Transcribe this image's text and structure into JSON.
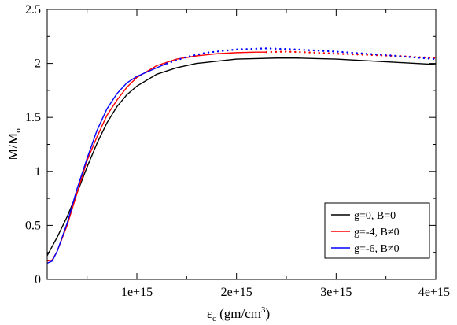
{
  "chart_data": {
    "type": "line",
    "xlabel": {
      "symbol": "ε",
      "sub": "c",
      "rest": " (gm/cm",
      "sup": "3",
      "close": ")"
    },
    "ylabel": {
      "main": "M/M",
      "sub": "o"
    },
    "xlim": [
      100000000000000.0,
      4000000000000000.0
    ],
    "ylim": [
      0,
      2.5
    ],
    "xticks": [
      {
        "value": 1000000000000000.0,
        "label": "1e+15"
      },
      {
        "value": 2000000000000000.0,
        "label": "2e+15"
      },
      {
        "value": 3000000000000000.0,
        "label": "3e+15"
      },
      {
        "value": 4000000000000000.0,
        "label": "4e+15"
      }
    ],
    "yticks": [
      {
        "value": 0,
        "label": "0"
      },
      {
        "value": 0.5,
        "label": "0.5"
      },
      {
        "value": 1,
        "label": "1"
      },
      {
        "value": 1.5,
        "label": "1.5"
      },
      {
        "value": 2,
        "label": "2"
      },
      {
        "value": 2.5,
        "label": "2.5"
      }
    ],
    "grid": false,
    "legend": "bottom-right",
    "series": [
      {
        "name": "g=0, B=0",
        "color": "#000000",
        "x": [
          100000000000000.0,
          200000000000000.0,
          300000000000000.0,
          400000000000000.0,
          500000000000000.0,
          600000000000000.0,
          700000000000000.0,
          800000000000000.0,
          900000000000000.0,
          1000000000000000.0,
          1200000000000000.0,
          1400000000000000.0,
          1600000000000000.0,
          1800000000000000.0,
          2000000000000000.0,
          2200000000000000.0,
          2400000000000000.0,
          2600000000000000.0,
          2800000000000000.0,
          3000000000000000.0,
          3200000000000000.0,
          3400000000000000.0,
          3600000000000000.0,
          3800000000000000.0,
          4000000000000000.0
        ],
        "y": [
          0.22,
          0.39,
          0.58,
          0.8,
          1.04,
          1.26,
          1.45,
          1.6,
          1.71,
          1.79,
          1.9,
          1.96,
          2.0,
          2.02,
          2.04,
          2.045,
          2.05,
          2.05,
          2.045,
          2.04,
          2.03,
          2.02,
          2.01,
          2.0,
          1.99
        ],
        "dotted_from_index": -1
      },
      {
        "name": "g=-4, B≠0",
        "color": "#ff0000",
        "x": [
          100000000000000.0,
          150000000000000.0,
          200000000000000.0,
          300000000000000.0,
          400000000000000.0,
          500000000000000.0,
          600000000000000.0,
          700000000000000.0,
          800000000000000.0,
          900000000000000.0,
          1000000000000000.0,
          1200000000000000.0,
          1400000000000000.0,
          1600000000000000.0,
          1800000000000000.0,
          2000000000000000.0,
          2200000000000000.0,
          2300000000000000.0,
          2500000000000000.0,
          2800000000000000.0,
          3000000000000000.0,
          3300000000000000.0,
          3600000000000000.0,
          4000000000000000.0
        ],
        "y": [
          0.17,
          0.18,
          0.26,
          0.5,
          0.8,
          1.1,
          1.32,
          1.52,
          1.66,
          1.78,
          1.87,
          1.98,
          2.04,
          2.07,
          2.09,
          2.1,
          2.105,
          2.105,
          2.11,
          2.1,
          2.09,
          2.08,
          2.07,
          2.05
        ],
        "dotted_from_index": 17
      },
      {
        "name": "g=-6, B≠0",
        "color": "#0000ff",
        "x": [
          100000000000000.0,
          150000000000000.0,
          200000000000000.0,
          300000000000000.0,
          400000000000000.0,
          500000000000000.0,
          600000000000000.0,
          700000000000000.0,
          800000000000000.0,
          900000000000000.0,
          1000000000000000.0,
          1100000000000000.0,
          1200000000000000.0,
          1300000000000000.0,
          1500000000000000.0,
          1700000000000000.0,
          2000000000000000.0,
          2300000000000000.0,
          2600000000000000.0,
          3000000000000000.0,
          3300000000000000.0,
          3600000000000000.0,
          4000000000000000.0
        ],
        "y": [
          0.15,
          0.17,
          0.26,
          0.52,
          0.84,
          1.12,
          1.38,
          1.58,
          1.72,
          1.82,
          1.88,
          1.92,
          1.96,
          2.0,
          2.06,
          2.1,
          2.13,
          2.14,
          2.13,
          2.11,
          2.09,
          2.07,
          2.04
        ],
        "dotted_from_index": 13
      }
    ]
  }
}
